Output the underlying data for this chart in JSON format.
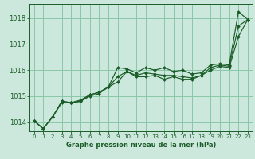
{
  "title": "Graphe pression niveau de la mer (hPa)",
  "background_color": "#cce8dc",
  "grid_color": "#88c8a8",
  "line_color": "#1a5c28",
  "marker_color": "#1a5c28",
  "xlim": [
    -0.5,
    23.5
  ],
  "ylim": [
    1013.65,
    1018.55
  ],
  "yticks": [
    1014,
    1015,
    1016,
    1017,
    1018
  ],
  "xticks": [
    0,
    1,
    2,
    3,
    4,
    5,
    6,
    7,
    8,
    9,
    10,
    11,
    12,
    13,
    14,
    15,
    16,
    17,
    18,
    19,
    20,
    21,
    22,
    23
  ],
  "series": [
    [
      1014.05,
      1013.75,
      1014.2,
      1014.8,
      1014.75,
      1014.85,
      1015.05,
      1015.15,
      1015.35,
      1016.1,
      1016.05,
      1015.9,
      1016.1,
      1016.0,
      1016.1,
      1015.95,
      1016.0,
      1015.85,
      1015.9,
      1016.2,
      1016.25,
      1016.2,
      1018.25,
      1017.95
    ],
    [
      1014.05,
      1013.75,
      1014.2,
      1014.75,
      1014.75,
      1014.8,
      1015.0,
      1015.1,
      1015.35,
      1015.55,
      1015.95,
      1015.75,
      1015.75,
      1015.8,
      1015.65,
      1015.75,
      1015.65,
      1015.65,
      1015.8,
      1016.0,
      1016.15,
      1016.1,
      1017.3,
      1017.95
    ],
    [
      1014.05,
      1013.75,
      1014.2,
      1014.8,
      1014.75,
      1014.8,
      1015.05,
      1015.15,
      1015.35,
      1015.75,
      1015.95,
      1015.8,
      1015.9,
      1015.85,
      1015.8,
      1015.8,
      1015.75,
      1015.7,
      1015.8,
      1016.1,
      1016.2,
      1016.15,
      1017.7,
      1017.95
    ]
  ]
}
